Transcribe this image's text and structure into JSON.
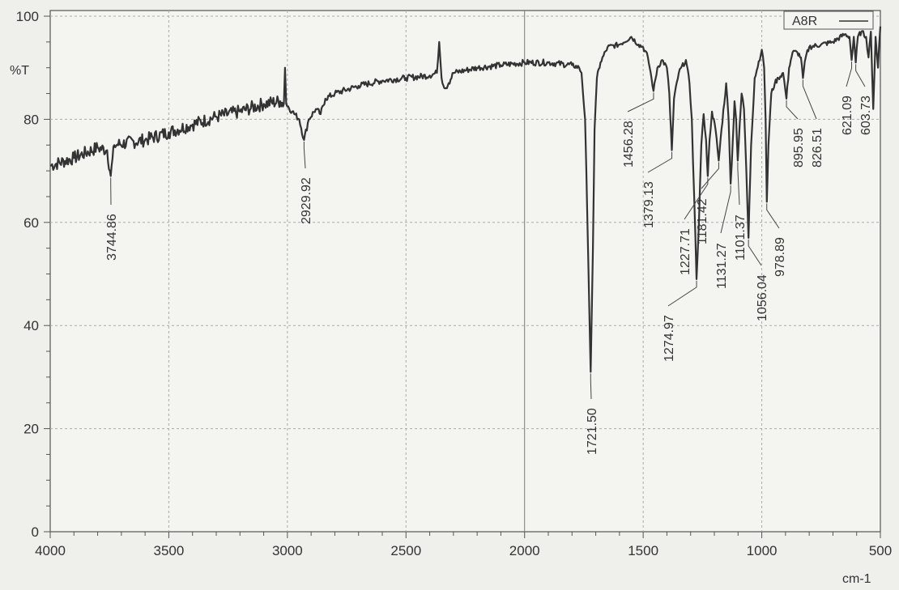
{
  "chart_data": {
    "type": "line",
    "title": "",
    "xlabel": "cm-1",
    "ylabel": "%T",
    "xlim": [
      4000,
      500
    ],
    "ylim": [
      0,
      100
    ],
    "x_reversed": true,
    "grid": true,
    "legend_position": "top-right",
    "xticks": [
      4000,
      3500,
      3000,
      2500,
      2000,
      1500,
      1000,
      500
    ],
    "yticks": [
      0,
      20,
      40,
      60,
      80,
      100
    ],
    "line_color": "#333333",
    "series": [
      {
        "name": "A8R",
        "points": [
          [
            4000,
            71
          ],
          [
            3900,
            72.5
          ],
          [
            3800,
            74.5
          ],
          [
            3760,
            74
          ],
          [
            3744.86,
            69
          ],
          [
            3730,
            75
          ],
          [
            3600,
            76
          ],
          [
            3500,
            77.5
          ],
          [
            3400,
            79
          ],
          [
            3300,
            80.5
          ],
          [
            3200,
            81.5
          ],
          [
            3100,
            83
          ],
          [
            3030,
            83.5
          ],
          [
            3015,
            83
          ],
          [
            3010,
            90
          ],
          [
            3005,
            83
          ],
          [
            2980,
            81.5
          ],
          [
            2950,
            80
          ],
          [
            2929.92,
            76
          ],
          [
            2910,
            80
          ],
          [
            2880,
            82
          ],
          [
            2860,
            81
          ],
          [
            2840,
            84
          ],
          [
            2800,
            85
          ],
          [
            2700,
            86.5
          ],
          [
            2600,
            87.5
          ],
          [
            2500,
            88
          ],
          [
            2400,
            88.5
          ],
          [
            2370,
            89
          ],
          [
            2360,
            95
          ],
          [
            2350,
            88
          ],
          [
            2335,
            86
          ],
          [
            2320,
            87
          ],
          [
            2300,
            89
          ],
          [
            2200,
            90
          ],
          [
            2100,
            90.5
          ],
          [
            2000,
            91
          ],
          [
            1900,
            91
          ],
          [
            1800,
            90.5
          ],
          [
            1770,
            90
          ],
          [
            1760,
            89
          ],
          [
            1745,
            80
          ],
          [
            1735,
            60
          ],
          [
            1721.5,
            31
          ],
          [
            1712,
            55
          ],
          [
            1705,
            78
          ],
          [
            1695,
            88
          ],
          [
            1680,
            91
          ],
          [
            1650,
            94
          ],
          [
            1600,
            94.5
          ],
          [
            1550,
            96
          ],
          [
            1520,
            94.5
          ],
          [
            1500,
            94
          ],
          [
            1480,
            92
          ],
          [
            1465,
            88
          ],
          [
            1456.28,
            85.5
          ],
          [
            1440,
            90
          ],
          [
            1420,
            91.5
          ],
          [
            1400,
            90
          ],
          [
            1390,
            85
          ],
          [
            1379.13,
            74
          ],
          [
            1370,
            84
          ],
          [
            1350,
            89
          ],
          [
            1320,
            91.5
          ],
          [
            1305,
            87
          ],
          [
            1295,
            80
          ],
          [
            1285,
            65
          ],
          [
            1274.97,
            49
          ],
          [
            1265,
            60
          ],
          [
            1255,
            75
          ],
          [
            1245,
            81
          ],
          [
            1235,
            76
          ],
          [
            1227.71,
            69
          ],
          [
            1220,
            76
          ],
          [
            1210,
            81.5
          ],
          [
            1195,
            78
          ],
          [
            1181.42,
            72
          ],
          [
            1170,
            78
          ],
          [
            1150,
            87
          ],
          [
            1140,
            80
          ],
          [
            1131.27,
            67.5
          ],
          [
            1122,
            76
          ],
          [
            1115,
            83.5
          ],
          [
            1108,
            80
          ],
          [
            1101.37,
            72
          ],
          [
            1093,
            79
          ],
          [
            1085,
            85
          ],
          [
            1075,
            82
          ],
          [
            1065,
            70
          ],
          [
            1056.04,
            57
          ],
          [
            1045,
            75
          ],
          [
            1030,
            88
          ],
          [
            1000,
            93.5
          ],
          [
            990,
            90
          ],
          [
            984,
            80
          ],
          [
            978.89,
            64
          ],
          [
            972,
            75
          ],
          [
            960,
            85
          ],
          [
            945,
            87
          ],
          [
            930,
            88
          ],
          [
            910,
            89
          ],
          [
            895.95,
            84
          ],
          [
            885,
            90
          ],
          [
            870,
            93
          ],
          [
            850,
            93
          ],
          [
            835,
            92
          ],
          [
            826.51,
            88
          ],
          [
            815,
            92
          ],
          [
            800,
            94
          ],
          [
            750,
            94.5
          ],
          [
            700,
            95
          ],
          [
            650,
            96.5
          ],
          [
            630,
            96
          ],
          [
            621.09,
            91.5
          ],
          [
            612,
            96
          ],
          [
            603.73,
            91
          ],
          [
            595,
            96
          ],
          [
            580,
            97
          ],
          [
            560,
            96
          ],
          [
            550,
            92
          ],
          [
            540,
            97
          ],
          [
            530,
            82
          ],
          [
            520,
            96
          ],
          [
            510,
            90
          ],
          [
            500,
            98
          ]
        ]
      }
    ],
    "peak_labels": [
      "3744.86",
      "2929.92",
      "1721.50",
      "1456.28",
      "1379.13",
      "1274.97",
      "1227.71",
      "1181.42",
      "1131.27",
      "1101.37",
      "1056.04",
      "978.89",
      "895.95",
      "826.51",
      "621.09",
      "603.73"
    ]
  }
}
